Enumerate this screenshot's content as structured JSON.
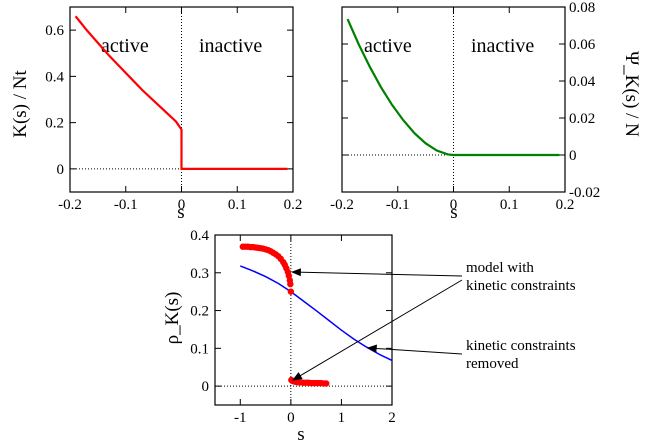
{
  "chart_data": [
    {
      "type": "line",
      "xlabel": "s",
      "ylabel": "K(s) / Nt",
      "xlim": [
        -0.2,
        0.2
      ],
      "ylim": [
        -0.1,
        0.7
      ],
      "xticks": [
        -0.2,
        -0.1,
        0,
        0.1,
        0.2
      ],
      "yticks": [
        0,
        0.2,
        0.4,
        0.6
      ],
      "xtick_labels": [
        "-0.2",
        "-0.1",
        "0",
        "0.1",
        "0.2"
      ],
      "ytick_labels": [
        "0",
        "0.2",
        "0.4",
        "0.6"
      ],
      "annotations": [
        "active",
        "inactive"
      ],
      "series": [
        {
          "color": "#ff0000",
          "x": [
            -0.19,
            -0.17,
            -0.15,
            -0.13,
            -0.11,
            -0.09,
            -0.07,
            -0.05,
            -0.03,
            -0.01,
            0,
            0,
            0.19
          ],
          "y": [
            0.66,
            0.6,
            0.545,
            0.49,
            0.44,
            0.39,
            0.34,
            0.295,
            0.25,
            0.205,
            0.17,
            0,
            0
          ]
        }
      ]
    },
    {
      "type": "line",
      "xlabel": "s",
      "ylabel": "Ψ_K(s) / N",
      "xlim": [
        -0.2,
        0.2
      ],
      "ylim": [
        -0.02,
        0.08
      ],
      "xticks": [
        -0.2,
        -0.1,
        0,
        0.1,
        0.2
      ],
      "yticks": [
        -0.02,
        0,
        0.02,
        0.04,
        0.06,
        0.08
      ],
      "xtick_labels": [
        "-0.2",
        "-0.1",
        "0",
        "0.1",
        "0.2"
      ],
      "ytick_labels": [
        "-0.02",
        "0",
        "0.02",
        "0.04",
        "0.06",
        "0.08"
      ],
      "annotations": [
        "active",
        "inactive"
      ],
      "series": [
        {
          "color": "#008000",
          "x": [
            -0.19,
            -0.17,
            -0.15,
            -0.13,
            -0.11,
            -0.09,
            -0.07,
            -0.05,
            -0.03,
            -0.01,
            0,
            0.19
          ],
          "y": [
            0.0735,
            0.0598,
            0.0476,
            0.0366,
            0.027,
            0.0188,
            0.0118,
            0.0063,
            0.0024,
            0.0003,
            0,
            0
          ]
        }
      ]
    },
    {
      "type": "line",
      "xlabel": "s",
      "ylabel": "ρ_K(s)",
      "xlim": [
        -1.5,
        2
      ],
      "ylim": [
        -0.05,
        0.4
      ],
      "xticks": [
        -1,
        0,
        1,
        2
      ],
      "yticks": [
        0,
        0.1,
        0.2,
        0.3,
        0.4
      ],
      "xtick_labels": [
        "-1",
        "0",
        "1",
        "2"
      ],
      "ytick_labels": [
        "0",
        "0.1",
        "0.2",
        "0.3",
        "0.4"
      ],
      "annotations": [
        "model with",
        "kinetic constraints",
        "kinetic constraints",
        "removed"
      ],
      "series": [
        {
          "color": "#0000ff",
          "x": [
            -1,
            -0.75,
            -0.5,
            -0.25,
            0,
            0.25,
            0.5,
            0.75,
            1,
            1.25,
            1.5,
            1.75,
            2
          ],
          "y": [
            0.318,
            0.305,
            0.29,
            0.272,
            0.25,
            0.225,
            0.2,
            0.174,
            0.148,
            0.124,
            0.103,
            0.084,
            0.068
          ]
        },
        {
          "color": "#ff0000",
          "markers": true,
          "x": [
            -0.95,
            -0.9,
            -0.85,
            -0.8,
            -0.75,
            -0.7,
            -0.65,
            -0.6,
            -0.55,
            -0.5,
            -0.45,
            -0.4,
            -0.35,
            -0.3,
            -0.25,
            -0.2,
            -0.15,
            -0.12,
            -0.09,
            -0.06,
            -0.04,
            -0.02,
            -0.01
          ],
          "y": [
            0.369,
            0.369,
            0.369,
            0.368,
            0.368,
            0.367,
            0.366,
            0.365,
            0.364,
            0.362,
            0.36,
            0.357,
            0.353,
            0.349,
            0.344,
            0.337,
            0.328,
            0.321,
            0.312,
            0.302,
            0.292,
            0.28,
            0.27
          ]
        },
        {
          "color": "#ff0000",
          "markers": true,
          "x": [
            0.01,
            0.03,
            0.05,
            0.08,
            0.11,
            0.15,
            0.2,
            0.25,
            0.3,
            0.35,
            0.4,
            0.45,
            0.5,
            0.55,
            0.6,
            0.65,
            0.7
          ],
          "y": [
            0.016,
            0.014,
            0.013,
            0.012,
            0.011,
            0.01,
            0.01,
            0.009,
            0.009,
            0.009,
            0.008,
            0.008,
            0.008,
            0.008,
            0.008,
            0.007,
            0.007
          ]
        },
        {
          "color": "#ff0000",
          "markers": true,
          "x": [
            0
          ],
          "y": [
            0.25
          ]
        }
      ]
    }
  ]
}
